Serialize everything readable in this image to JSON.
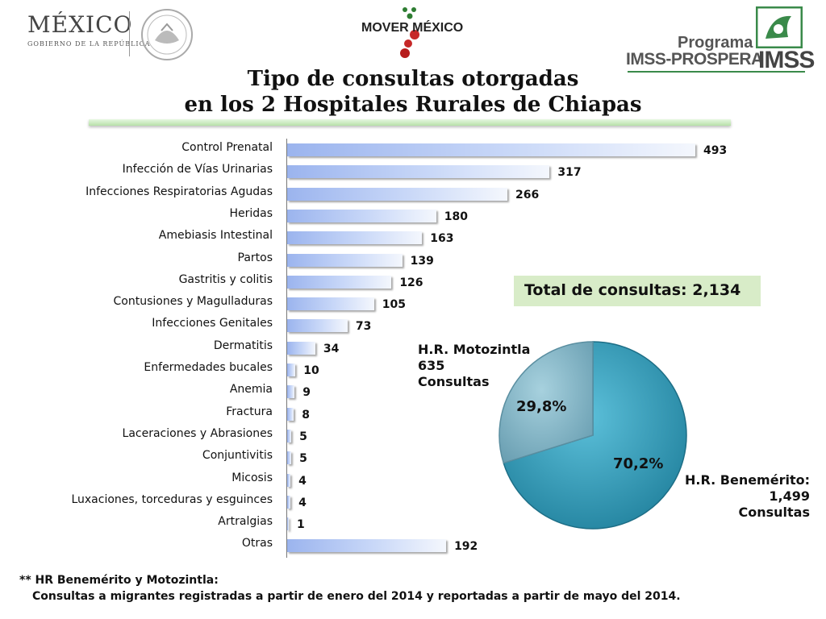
{
  "header": {
    "mexico_title": "MÉXICO",
    "mexico_subtitle": "GOBIERNO DE LA REPÚBLICA",
    "mover_mexico": "MOVER MÉXICO",
    "imss_program_line1": "Programa",
    "imss_program_line2": "IMSS-PROSPERA",
    "imss_word": "IMSS"
  },
  "title": {
    "line1": "Tipo de consultas otorgadas",
    "line2": "en los 2 Hospitales Rurales de Chiapas"
  },
  "colors": {
    "bar_start": "#9bb4ee",
    "bar_end": "#f4f7fd",
    "pie_benemerito": "#2f97b4",
    "pie_motozintla": "#7fb1c2",
    "total_box": "#d8ecc8",
    "title_bar": "#c6e7b6"
  },
  "chart_data": [
    {
      "type": "bar",
      "orientation": "horizontal",
      "title": "Tipo de consultas otorgadas en los 2 Hospitales Rurales de Chiapas",
      "categories": [
        "Control Prenatal",
        "Infección de Vías Urinarias",
        "Infecciones Respiratorias Agudas",
        "Heridas",
        "Amebiasis Intestinal",
        "Partos",
        "Gastritis y colitis",
        "Contusiones y Magulladuras",
        "Infecciones Genitales",
        "Dermatitis",
        "Enfermedades bucales",
        "Anemia",
        "Fractura",
        "Laceraciones y Abrasiones",
        "Conjuntivitis",
        "Micosis",
        "Luxaciones, torceduras y esguinces",
        "Artralgias",
        "Otras"
      ],
      "values": [
        493,
        317,
        266,
        180,
        163,
        139,
        126,
        105,
        73,
        34,
        10,
        9,
        8,
        5,
        5,
        4,
        4,
        1,
        192
      ],
      "xlim": [
        0,
        493
      ]
    },
    {
      "type": "pie",
      "total_label": "Total de consultas: 2,134",
      "slices": [
        {
          "name": "H.R. Benemérito:",
          "count": "1,499",
          "unit": "Consultas",
          "percent_label": "70,2%",
          "value": 70.2
        },
        {
          "name": "H.R. Motozintla",
          "count": "635",
          "unit": "Consultas",
          "percent_label": "29,8%",
          "value": 29.8
        }
      ]
    }
  ],
  "footnote": {
    "line1": "** HR Benemérito y Motozintla:",
    "line2": "Consultas a migrantes registradas a partir de enero del 2014 y reportadas a partir de mayo del 2014."
  }
}
